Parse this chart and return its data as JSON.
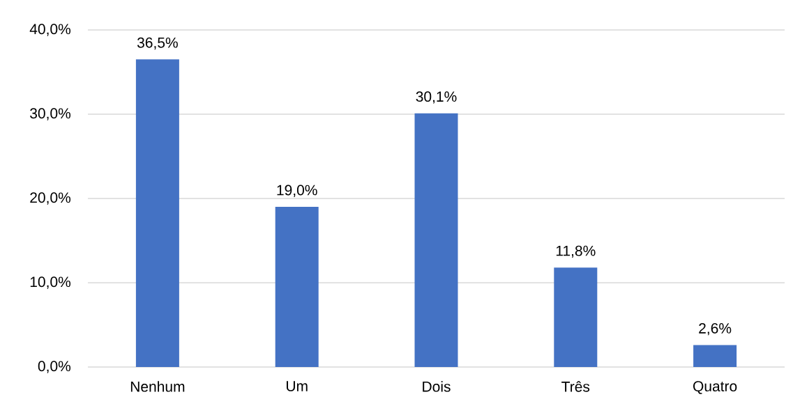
{
  "chart_data": {
    "type": "bar",
    "categories": [
      "Nenhum",
      "Um",
      "Dois",
      "Três",
      "Quatro"
    ],
    "values": [
      36.5,
      19.0,
      30.1,
      11.8,
      2.6
    ],
    "color": "#4472c4",
    "value_labels": [
      "36,5%",
      "19,0%",
      "30,1%",
      "11,8%",
      "2,6%"
    ],
    "ylim": [
      0,
      40
    ],
    "yticks": [
      {
        "value": 0,
        "label": "0,0%"
      },
      {
        "value": 10,
        "label": "10,0%"
      },
      {
        "value": 20,
        "label": "20,0%"
      },
      {
        "value": 30,
        "label": "30,0%"
      },
      {
        "value": 40,
        "label": "40,0%"
      }
    ],
    "grid": "y"
  }
}
